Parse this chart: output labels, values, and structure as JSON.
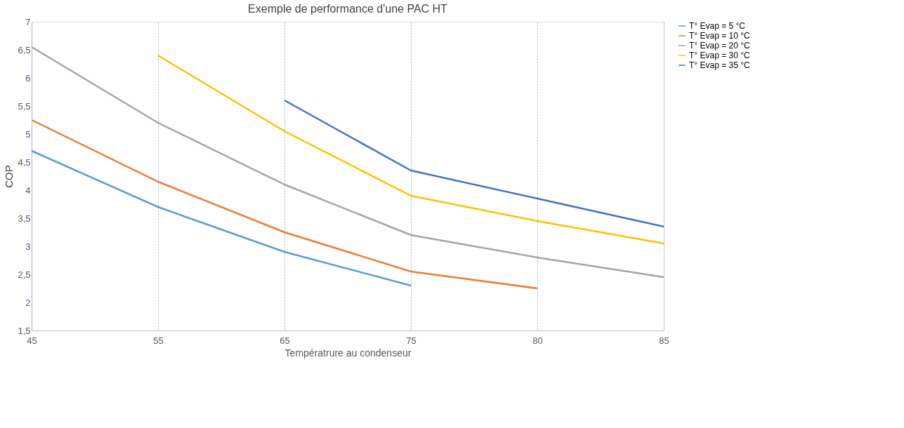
{
  "chart_data": {
    "type": "line",
    "title": "Exemple de performance d'une PAC HT",
    "xlabel": "Températrure au condenseur",
    "ylabel": "COP",
    "categories": [
      "45",
      "55",
      "65",
      "75",
      "80",
      "85"
    ],
    "series": [
      {
        "name": "T° Evap = 5 °C",
        "color": "#5b9bd5",
        "values": [
          4.7,
          3.7,
          2.9,
          2.3,
          null,
          null
        ]
      },
      {
        "name": "T° Evap = 10 °C",
        "color": "#ed7d31",
        "values": [
          5.25,
          4.15,
          3.25,
          2.55,
          2.25,
          null
        ]
      },
      {
        "name": "T° Evap = 20 °C",
        "color": "#a5a5a5",
        "values": [
          6.55,
          5.2,
          4.1,
          3.2,
          2.8,
          2.45
        ]
      },
      {
        "name": "T° Evap = 30 °C",
        "color": "#ffc000",
        "values": [
          null,
          6.4,
          5.05,
          3.9,
          3.45,
          3.05
        ]
      },
      {
        "name": "T° Evap = 35 °C",
        "color": "#4472c4",
        "values": [
          null,
          null,
          5.6,
          4.35,
          3.85,
          3.35
        ]
      }
    ],
    "ylim": [
      1.5,
      7
    ],
    "yticks": [
      {
        "value": 1.5,
        "label": "1,5"
      },
      2,
      {
        "value": 2.5,
        "label": "2,5"
      },
      3,
      {
        "value": 3.5,
        "label": "3,5"
      },
      4,
      {
        "value": 4.5,
        "label": "4,5"
      },
      5,
      {
        "value": 5.5,
        "label": "5,5"
      },
      6,
      {
        "value": 6.5,
        "label": "6,5"
      },
      7
    ],
    "grid": "x",
    "legend": "right",
    "marker": "none",
    "line_style": "solid"
  }
}
